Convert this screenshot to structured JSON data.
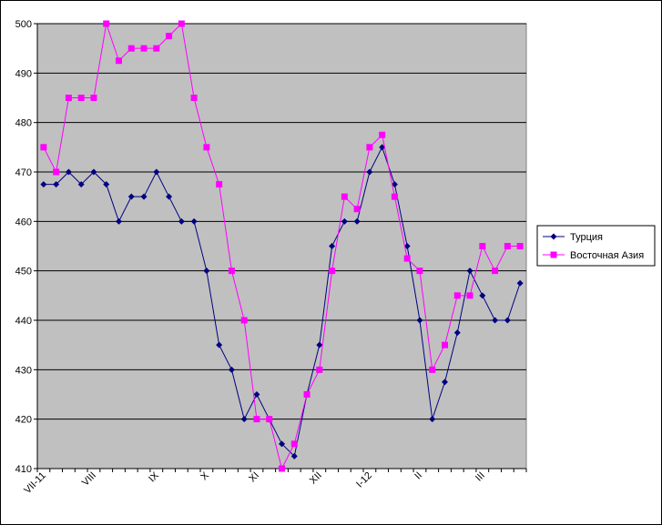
{
  "chart_data": {
    "type": "line",
    "categories": [
      "VII-11",
      null,
      null,
      null,
      "VIII",
      null,
      null,
      null,
      null,
      "IX",
      null,
      null,
      null,
      "X",
      null,
      null,
      null,
      "XI",
      null,
      null,
      null,
      null,
      "XII",
      null,
      null,
      null,
      "I-12",
      null,
      null,
      null,
      "II",
      null,
      null,
      null,
      null,
      "III",
      null,
      null,
      null
    ],
    "series": [
      {
        "name": "Турция",
        "color": "#000080",
        "marker": "diamond",
        "values": [
          467.5,
          467.5,
          470,
          467.5,
          470,
          467.5,
          460,
          465,
          465,
          470,
          465,
          460,
          460,
          450,
          435,
          430,
          420,
          425,
          420,
          415,
          412.5,
          425,
          435,
          455,
          460,
          460,
          470,
          475,
          467.5,
          455,
          440,
          420,
          427.5,
          437.5,
          450,
          445,
          440,
          440,
          447.5
        ]
      },
      {
        "name": "Восточная Азия",
        "color": "#ff00ff",
        "marker": "square",
        "values": [
          475,
          470,
          485,
          485,
          485,
          500,
          492.5,
          495,
          495,
          495,
          497.5,
          500,
          485,
          475,
          467.5,
          450,
          440,
          420,
          420,
          410,
          415,
          425,
          430,
          450,
          465,
          462.5,
          475,
          477.5,
          465,
          452.5,
          450,
          430,
          435,
          445,
          445,
          455,
          450,
          455,
          455
        ]
      }
    ],
    "ylim": [
      410,
      500
    ],
    "yticks": [
      410,
      420,
      430,
      440,
      450,
      460,
      470,
      480,
      490,
      500
    ],
    "grid": true,
    "legend": "right",
    "plot_background": "#c0c0c0"
  }
}
